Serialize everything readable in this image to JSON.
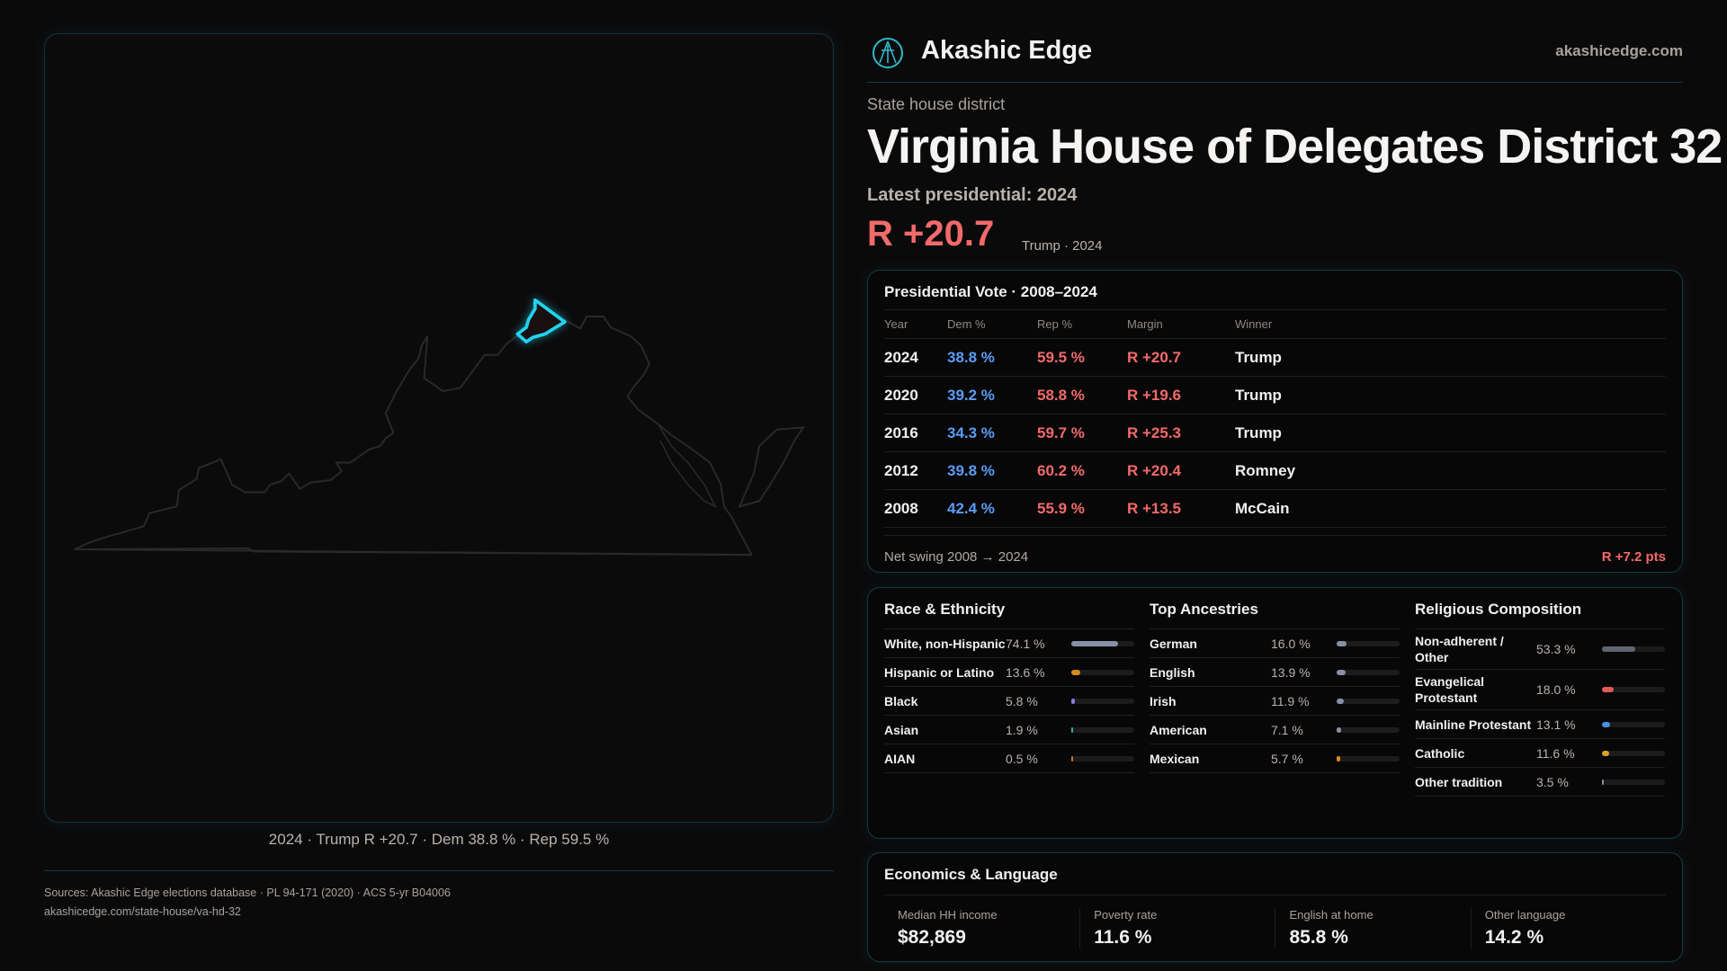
{
  "header": {
    "brand": "Akashic Edge",
    "site": "akashicedge.com",
    "logo_icon": "akashic-edge-logo"
  },
  "district": {
    "kicker": "State house district",
    "title": "Virginia House of Delegates District 32",
    "latest": "Latest presidential: 2024",
    "margin": "R +20.7",
    "margin_sub": "Trump · 2024"
  },
  "map": {
    "caption": "2024 · Trump R +20.7 · Dem 38.8 % · Rep 59.5 %",
    "highlight_color": "#22d3ee",
    "outline_color": "#2a2828"
  },
  "presidential": {
    "title": "Presidential Vote · 2008–2024",
    "columns": [
      "Year",
      "Dem %",
      "Rep %",
      "Margin",
      "Winner"
    ],
    "rows": [
      {
        "year": "2024",
        "dem": "38.8 %",
        "rep": "59.5 %",
        "margin": "R +20.7",
        "winner": "Trump"
      },
      {
        "year": "2020",
        "dem": "39.2 %",
        "rep": "58.8 %",
        "margin": "R +19.6",
        "winner": "Trump"
      },
      {
        "year": "2016",
        "dem": "34.3 %",
        "rep": "59.7 %",
        "margin": "R +25.3",
        "winner": "Trump"
      },
      {
        "year": "2012",
        "dem": "39.8 %",
        "rep": "60.2 %",
        "margin": "R +20.4",
        "winner": "Romney"
      },
      {
        "year": "2008",
        "dem": "42.4 %",
        "rep": "55.9 %",
        "margin": "R +13.5",
        "winner": "McCain"
      }
    ],
    "swing_label": "Net swing 2008 → 2024",
    "swing_value": "R +7.2 pts"
  },
  "demographics": [
    {
      "title": "Race & Ethnicity",
      "items": [
        {
          "label": "White, non-Hispanic",
          "value": "74.1 %",
          "pct": 74.1,
          "color": "#8791a5"
        },
        {
          "label": "Hispanic or Latino",
          "value": "13.6 %",
          "pct": 13.6,
          "color": "#d98a1a"
        },
        {
          "label": "Black",
          "value": "5.8 %",
          "pct": 5.8,
          "color": "#8b7ae0"
        },
        {
          "label": "Asian",
          "value": "1.9 %",
          "pct": 1.9,
          "color": "#2bb39a"
        },
        {
          "label": "AIAN",
          "value": "0.5 %",
          "pct": 0.5,
          "color": "#c8742a"
        }
      ]
    },
    {
      "title": "Top Ancestries",
      "items": [
        {
          "label": "German",
          "value": "16.0 %",
          "pct": 16.0,
          "color": "#8791a5"
        },
        {
          "label": "English",
          "value": "13.9 %",
          "pct": 13.9,
          "color": "#8791a5"
        },
        {
          "label": "Irish",
          "value": "11.9 %",
          "pct": 11.9,
          "color": "#8791a5"
        },
        {
          "label": "American",
          "value": "7.1 %",
          "pct": 7.1,
          "color": "#8791a5"
        },
        {
          "label": "Mexican",
          "value": "5.7 %",
          "pct": 5.7,
          "color": "#d98a1a"
        }
      ]
    },
    {
      "title": "Religious Composition",
      "items": [
        {
          "label": "Non-adherent / Other",
          "value": "53.3 %",
          "pct": 53.3,
          "color": "#5f6470"
        },
        {
          "label": "Evangelical Protestant",
          "value": "18.0 %",
          "pct": 18.0,
          "color": "#e05a5a"
        },
        {
          "label": "Mainline Protestant",
          "value": "13.1 %",
          "pct": 13.1,
          "color": "#4a8ee0"
        },
        {
          "label": "Catholic",
          "value": "11.6 %",
          "pct": 11.6,
          "color": "#d9a520"
        },
        {
          "label": "Other tradition",
          "value": "3.5 %",
          "pct": 3.5,
          "color": "#8a8f99"
        }
      ]
    }
  ],
  "economics": {
    "title": "Economics & Language",
    "stats": [
      {
        "label": "Median HH income",
        "value": "$82,869"
      },
      {
        "label": "Poverty rate",
        "value": "11.6 %"
      },
      {
        "label": "English at home",
        "value": "85.8 %"
      },
      {
        "label": "Other language",
        "value": "14.2 %"
      }
    ]
  },
  "sources": {
    "line1": "Sources: Akashic Edge elections database · PL 94-171 (2020) · ACS 5-yr B04006",
    "line2": "akashicedge.com/state-house/va-hd-32"
  }
}
